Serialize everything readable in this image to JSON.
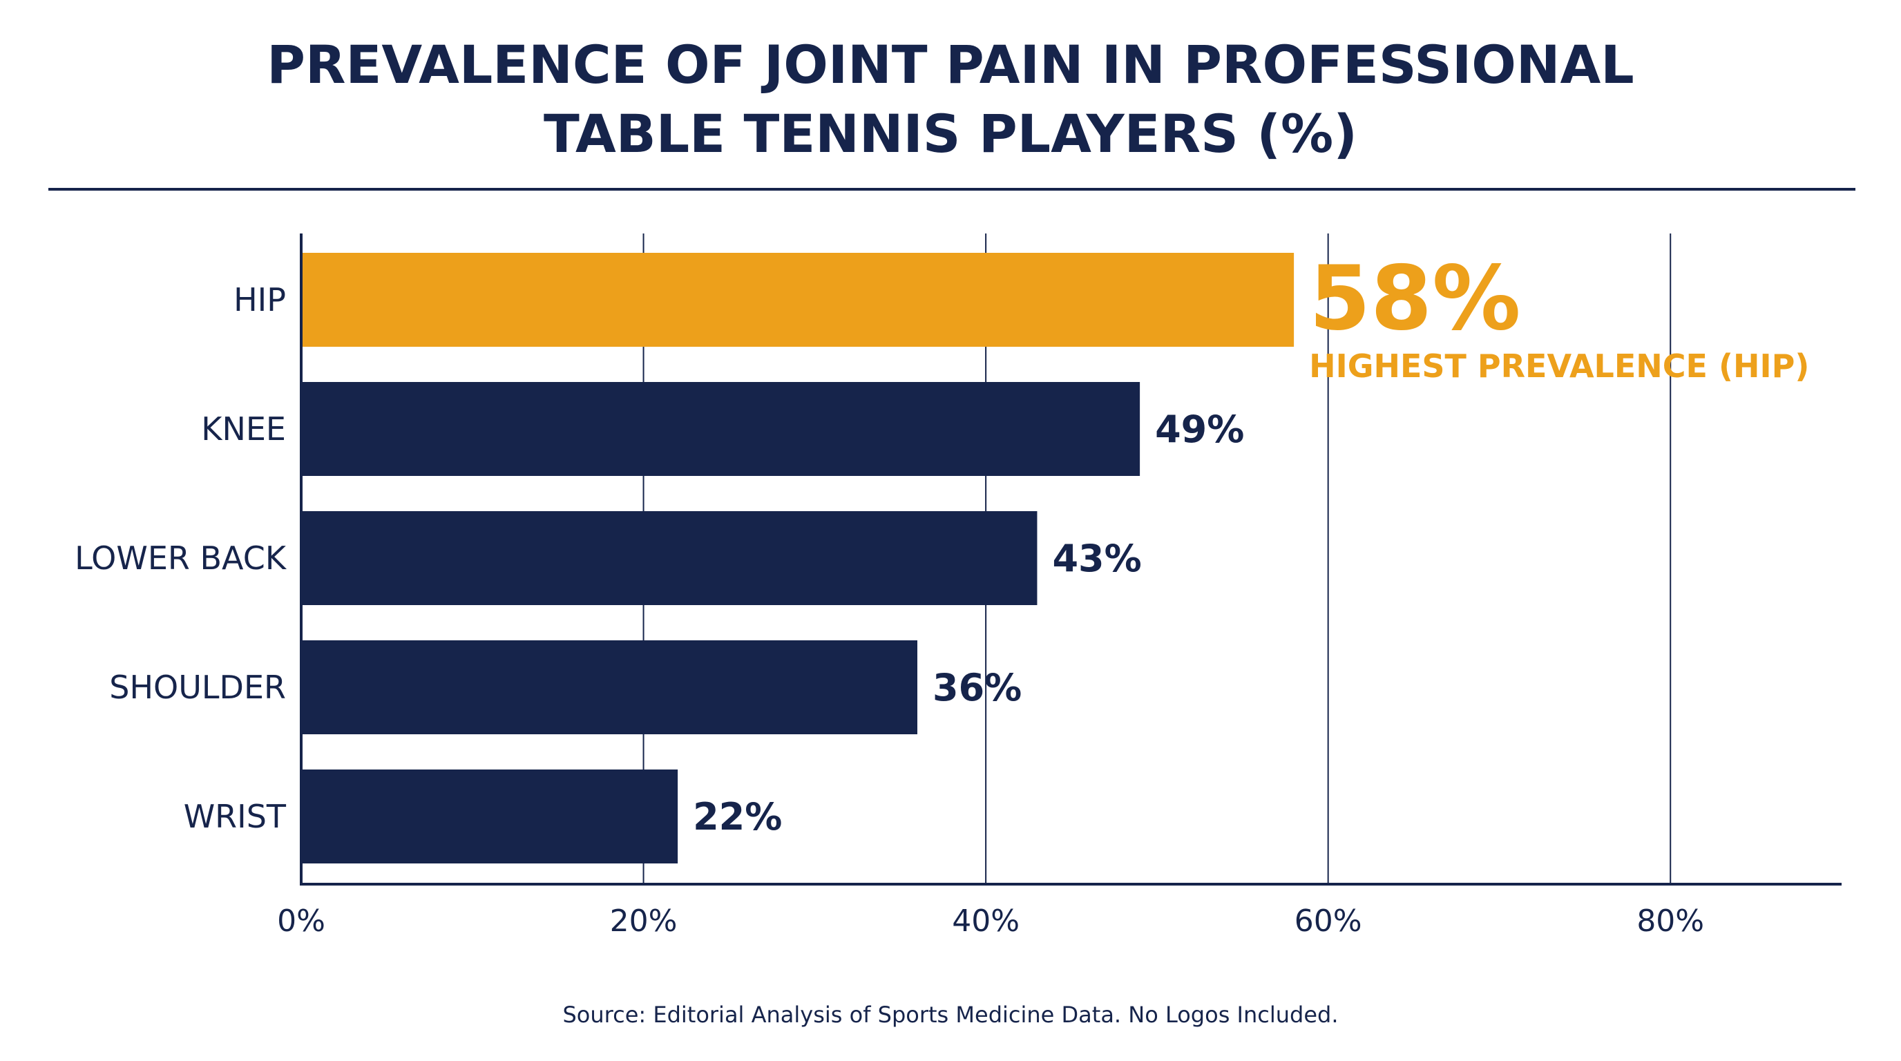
{
  "chart_data": {
    "type": "bar",
    "orientation": "horizontal",
    "title_lines": [
      "PREVALENCE OF JOINT PAIN IN PROFESSIONAL",
      "TABLE TENNIS PLAYERS (%)"
    ],
    "categories": [
      "HIP",
      "KNEE",
      "LOWER BACK",
      "SHOULDER",
      "WRIST"
    ],
    "values": [
      58,
      49,
      43,
      36,
      22
    ],
    "value_labels": [
      "58%",
      "49%",
      "43%",
      "36%",
      "22%"
    ],
    "xlim": [
      0,
      90
    ],
    "x_ticks": [
      0,
      20,
      40,
      60,
      80
    ],
    "x_tick_labels": [
      "0%",
      "20%",
      "40%",
      "60%",
      "80%"
    ],
    "grid": true,
    "highlight": {
      "category": "HIP",
      "value_label": "58%",
      "annotation": "HIGHEST PREVALENCE (HIP)"
    },
    "colors": {
      "bar": "#16244b",
      "highlight": "#eda01b",
      "text": "#16244b",
      "grid": "#16244b"
    }
  },
  "source": "Source: Editorial Analysis of Sports Medicine Data. No Logos Included."
}
